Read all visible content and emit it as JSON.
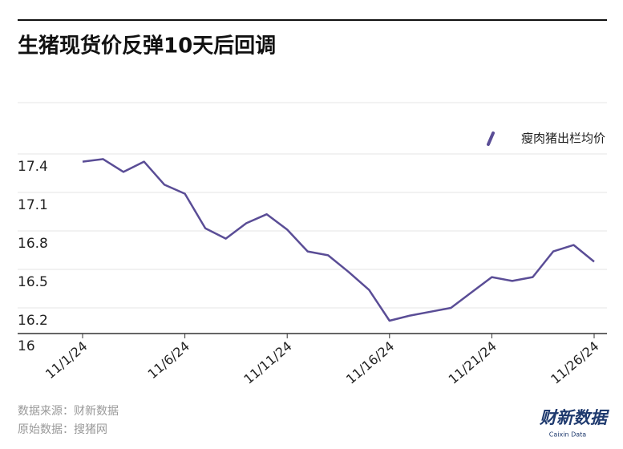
{
  "chart_data": {
    "type": "line",
    "title": "生猪现货价反弹10天后回调",
    "categories": [
      "11/1/24",
      null,
      null,
      null,
      null,
      "11/6/24",
      null,
      null,
      null,
      null,
      "11/11/24",
      null,
      null,
      null,
      null,
      "11/16/24",
      null,
      null,
      null,
      null,
      "11/21/24",
      null,
      null,
      null,
      null,
      "11/26/24"
    ],
    "series": [
      {
        "name": "瘦肉猪出栏均价",
        "color": "#5a4d96",
        "values": [
          17.34,
          17.36,
          17.26,
          17.34,
          17.16,
          17.09,
          16.82,
          16.74,
          16.86,
          16.93,
          16.81,
          16.64,
          16.61,
          16.48,
          16.34,
          16.1,
          16.14,
          16.17,
          16.2,
          16.32,
          16.44,
          16.41,
          16.44,
          16.64,
          16.69,
          16.56
        ]
      }
    ],
    "ylim": [
      16,
      17.8
    ],
    "yticks": [
      16,
      16.2,
      16.5,
      16.8,
      17.1,
      17.4
    ],
    "grid": true,
    "legend": "top-right",
    "source": "数据来源：财新数据",
    "raw_source": "原始数据：搜猪网",
    "logo": "财新数据",
    "logo_sub": "Caixin Data"
  }
}
